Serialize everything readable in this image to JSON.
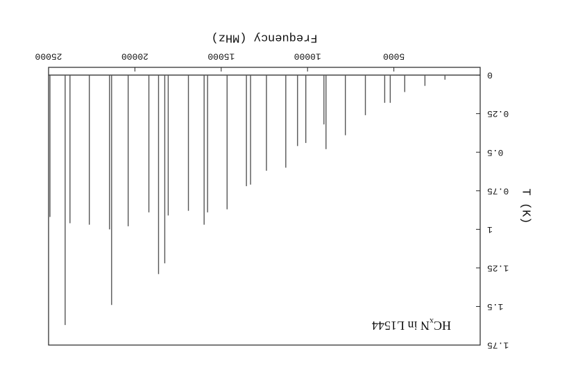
{
  "chart_data": {
    "type": "stem",
    "title": [
      "HC",
      "x",
      "N in L1544"
    ],
    "x_label": "Frequency (MHz)",
    "y_label": "T (K)",
    "x": [
      2040,
      3200,
      4370,
      5210,
      5530,
      6650,
      7810,
      8930,
      9050,
      10100,
      10580,
      11260,
      12380,
      13300,
      13540,
      14660,
      15790,
      15990,
      16900,
      18070,
      18270,
      18630,
      19190,
      20390,
      21350,
      21470,
      22640,
      23760,
      24040,
      24920
    ],
    "values": [
      0.03,
      0.07,
      0.11,
      0.18,
      0.18,
      0.26,
      0.39,
      0.48,
      0.32,
      0.44,
      0.46,
      0.6,
      0.62,
      0.71,
      0.72,
      0.87,
      0.89,
      0.97,
      0.88,
      0.91,
      1.22,
      1.29,
      0.89,
      0.98,
      1.49,
      1.0,
      0.97,
      0.96,
      1.62,
      0.92
    ],
    "color": "#555555",
    "xlim": [
      0,
      25000
    ],
    "xticks": [
      5000,
      10000,
      15000,
      20000,
      25000
    ],
    "ylim": [
      -0.05,
      1.75
    ],
    "yticks": [
      0,
      0.25,
      0.5,
      0.75,
      1,
      1.25,
      1.5,
      1.75
    ]
  }
}
